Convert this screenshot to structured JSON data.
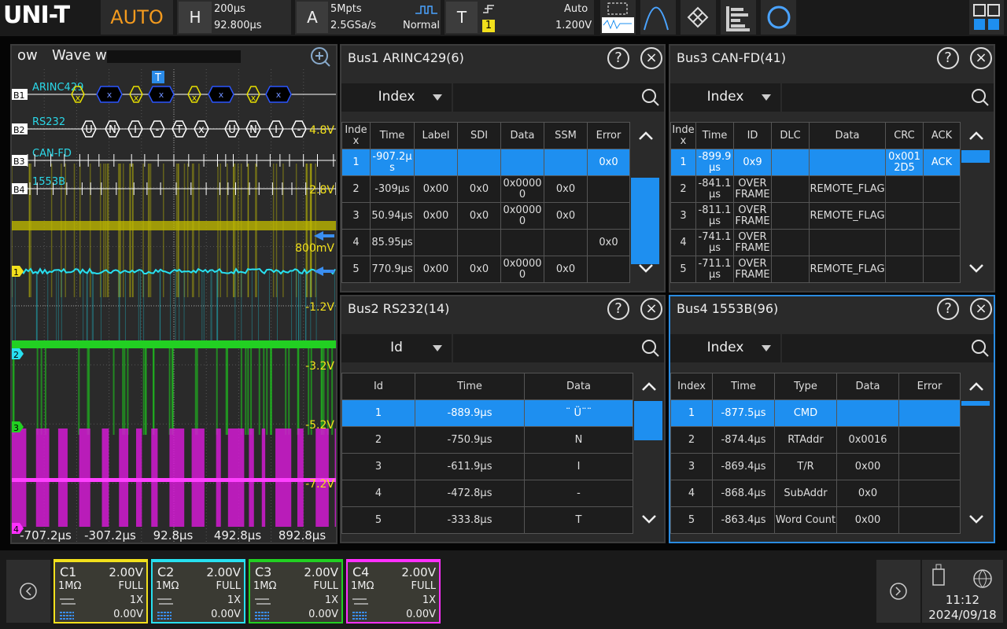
{
  "top_bar": {
    "logo": "UNI-T",
    "mode": "AUTO",
    "horizontal": {
      "label": "H",
      "timebase": "200µs",
      "offset": "92.800µs"
    },
    "acquire": {
      "label": "A",
      "depth": "5Mpts",
      "rate": "2.5GSa/s",
      "mode": "Normal"
    },
    "trigger": {
      "label": "T",
      "mode": "Auto",
      "source": "1",
      "level": "1.200V"
    }
  },
  "waveform": {
    "title": "ow",
    "subtitle": "Wave w",
    "trigger_marker": "T",
    "buses": [
      {
        "tag": "B1",
        "name": "ARINC429"
      },
      {
        "tag": "B2",
        "name": "RS232"
      },
      {
        "tag": "B3",
        "name": "CAN-FD"
      },
      {
        "tag": "B4",
        "name": "1553B"
      }
    ],
    "arinc_frames": [
      "x",
      "x",
      "x",
      "x",
      "x",
      "x",
      "x",
      "x"
    ],
    "rs232_frames": [
      "U",
      "N",
      "I",
      "-",
      "T",
      "x",
      "U",
      "N",
      "I",
      "-"
    ],
    "volt_labels": [
      "4.8V",
      "2.8V",
      "800mV",
      "-1.2V",
      "-3.2V",
      "-5.2V",
      "-7.2V"
    ],
    "channel_markers": [
      "1",
      "2",
      "3",
      "4"
    ],
    "time_labels": [
      "-707.2µs",
      "-307.2µs",
      "92.8µs",
      "492.8µs",
      "892.8µs"
    ]
  },
  "panels": [
    {
      "title": "Bus1 ARINC429(6)",
      "search_field": "Index",
      "columns": [
        "Index",
        "Time",
        "Label",
        "SDI",
        "Data",
        "SSM",
        "Error"
      ],
      "rows": [
        [
          1,
          "-907.2µs",
          null,
          null,
          null,
          null,
          "0x0"
        ],
        [
          2,
          "-309µs",
          "0x00",
          "0x0",
          "0x00000",
          "0x0",
          null
        ],
        [
          3,
          "50.94µs",
          "0x00",
          "0x0",
          "0x00000",
          "0x0",
          null
        ],
        [
          4,
          "85.95µs",
          null,
          null,
          null,
          null,
          "0x0"
        ],
        [
          5,
          "770.9µs",
          "0x00",
          "0x0",
          "0x00000",
          "0x0",
          null
        ]
      ]
    },
    {
      "title": "Bus3 CAN-FD(41)",
      "search_field": "Index",
      "columns": [
        "Index",
        "Time",
        "ID",
        "DLC",
        "Data",
        "CRC",
        "ACK"
      ],
      "rows": [
        [
          1,
          "-899.9µs",
          "0x9",
          null,
          null,
          "0x0012D5",
          "ACK"
        ],
        [
          2,
          "-841.1µs",
          "OVER FRAME",
          null,
          "REMOTE_FLAG",
          null,
          null
        ],
        [
          3,
          "-811.1µs",
          "OVER FRAME",
          null,
          "REMOTE_FLAG",
          null,
          null
        ],
        [
          4,
          "-741.1µs",
          "OVER FRAME",
          null,
          null,
          null,
          null
        ],
        [
          5,
          "-711.1µs",
          "OVER FRAME",
          null,
          "REMOTE_FLAG",
          null,
          null
        ]
      ]
    },
    {
      "title": "Bus2 RS232(14)",
      "search_field": "Id",
      "columns": [
        "Id",
        "Time",
        "Data"
      ],
      "rows": [
        [
          1,
          "-889.9µs",
          "¨ Ü¨¨"
        ],
        [
          2,
          "-750.9µs",
          "N"
        ],
        [
          3,
          "-611.9µs",
          "I"
        ],
        [
          4,
          "-472.8µs",
          "-"
        ],
        [
          5,
          "-333.8µs",
          "T"
        ]
      ]
    },
    {
      "title": "Bus4 1553B(96)",
      "search_field": "Index",
      "columns": [
        "Index",
        "Time",
        "Type",
        "Data",
        "Error"
      ],
      "rows": [
        [
          1,
          "-877.5µs",
          "CMD",
          null,
          null
        ],
        [
          2,
          "-874.4µs",
          "RTAddr",
          "0x0016",
          null
        ],
        [
          3,
          "-869.4µs",
          "T/R",
          "0x00",
          null
        ],
        [
          4,
          "-868.4µs",
          "SubAddr",
          "0x0",
          null
        ],
        [
          5,
          "-863.4µs",
          "Word Count",
          "0x00",
          null
        ]
      ]
    }
  ],
  "channels": [
    {
      "name": "C1",
      "scale": "2.00V",
      "impedance": "1MΩ",
      "bandwidth": "FULL",
      "probe": "1X",
      "offset": "0.00V"
    },
    {
      "name": "C2",
      "scale": "2.00V",
      "impedance": "1MΩ",
      "bandwidth": "FULL",
      "probe": "1X",
      "offset": "0.00V"
    },
    {
      "name": "C3",
      "scale": "2.00V",
      "impedance": "1MΩ",
      "bandwidth": "FULL",
      "probe": "1X",
      "offset": "0.00V"
    },
    {
      "name": "C4",
      "scale": "2.00V",
      "impedance": "1MΩ",
      "bandwidth": "FULL",
      "probe": "1X",
      "offset": "0.00V"
    }
  ],
  "status": {
    "time": "11:12",
    "date": "2024/09/18"
  }
}
